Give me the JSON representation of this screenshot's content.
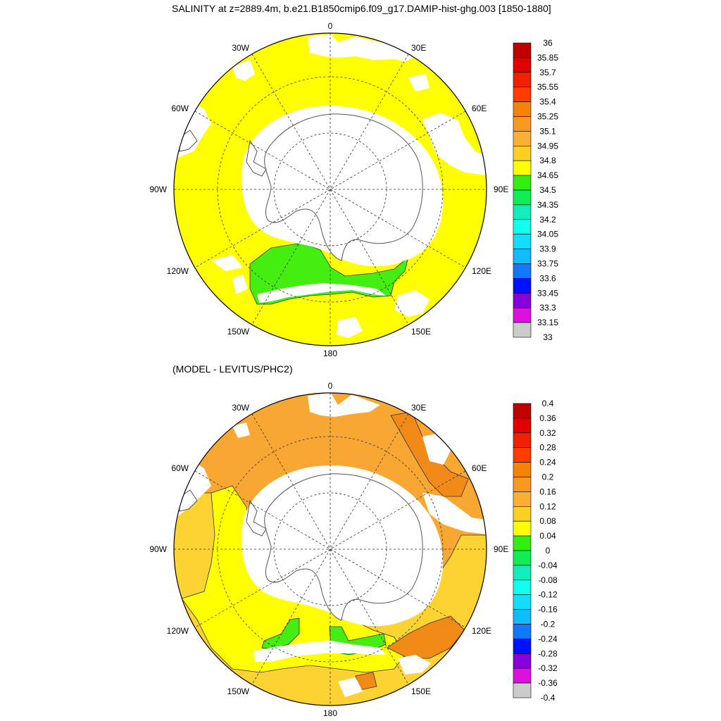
{
  "top_panel": {
    "title": "SALINITY at z=2889.4m, b.e21.B1850cmip6.f09_g17.DAMIP-hist-ghg.003 [1850-1880]",
    "lon_labels": [
      "0",
      "30E",
      "60E",
      "90E",
      "120E",
      "150E",
      "180",
      "150W",
      "120W",
      "90W",
      "60W",
      "30W"
    ],
    "colorbar": {
      "labels": [
        "36",
        "35.85",
        "35.7",
        "35.55",
        "35.4",
        "35.25",
        "35.1",
        "34.95",
        "34.8",
        "34.65",
        "34.5",
        "34.35",
        "34.2",
        "34.05",
        "33.9",
        "33.75",
        "33.6",
        "33.45",
        "33.3",
        "33.15",
        "33"
      ],
      "colors": [
        "#c00000",
        "#e00000",
        "#f02000",
        "#ff3c00",
        "#f58400",
        "#f89a20",
        "#fbb035",
        "#fdd020",
        "#ffff00",
        "#33ee11",
        "#11ee55",
        "#11eebb",
        "#11ffee",
        "#11ddff",
        "#11bbff",
        "#1177ff",
        "#0011ff",
        "#8800dd",
        "#dd11dd",
        "#cccccc",
        "#777777"
      ]
    }
  },
  "bottom_panel": {
    "title": "(MODEL - LEVITUS/PHC2)",
    "lon_labels": [
      "0",
      "30E",
      "60E",
      "90E",
      "120E",
      "150E",
      "180",
      "150W",
      "120W",
      "90W",
      "60W",
      "30W"
    ],
    "colorbar": {
      "labels": [
        "0.4",
        "0.36",
        "0.32",
        "0.28",
        "0.24",
        "0.2",
        "0.16",
        "0.12",
        "0.08",
        "0.04",
        "0",
        "-0.04",
        "-0.08",
        "-0.12",
        "-0.16",
        "-0.2",
        "-0.24",
        "-0.28",
        "-0.32",
        "-0.36",
        "-0.4"
      ],
      "colors": [
        "#c00000",
        "#e00000",
        "#f02000",
        "#ff3c00",
        "#f58400",
        "#f89a20",
        "#fbb035",
        "#fdd020",
        "#ffff00",
        "#33ee11",
        "#11ee55",
        "#11eebb",
        "#11ffee",
        "#11ddff",
        "#11bbff",
        "#1177ff",
        "#0011ff",
        "#8800dd",
        "#dd11dd",
        "#cccccc",
        "#777777"
      ]
    }
  },
  "palette": {
    "fill_yellow": "#ffff00",
    "fill_green": "#44ee11",
    "fill_orange": "#f8a832",
    "fill_dark_orange": "#f28a18",
    "fill_light_orange": "#fdd333",
    "land": "#ffffff",
    "coast": "#444444"
  }
}
